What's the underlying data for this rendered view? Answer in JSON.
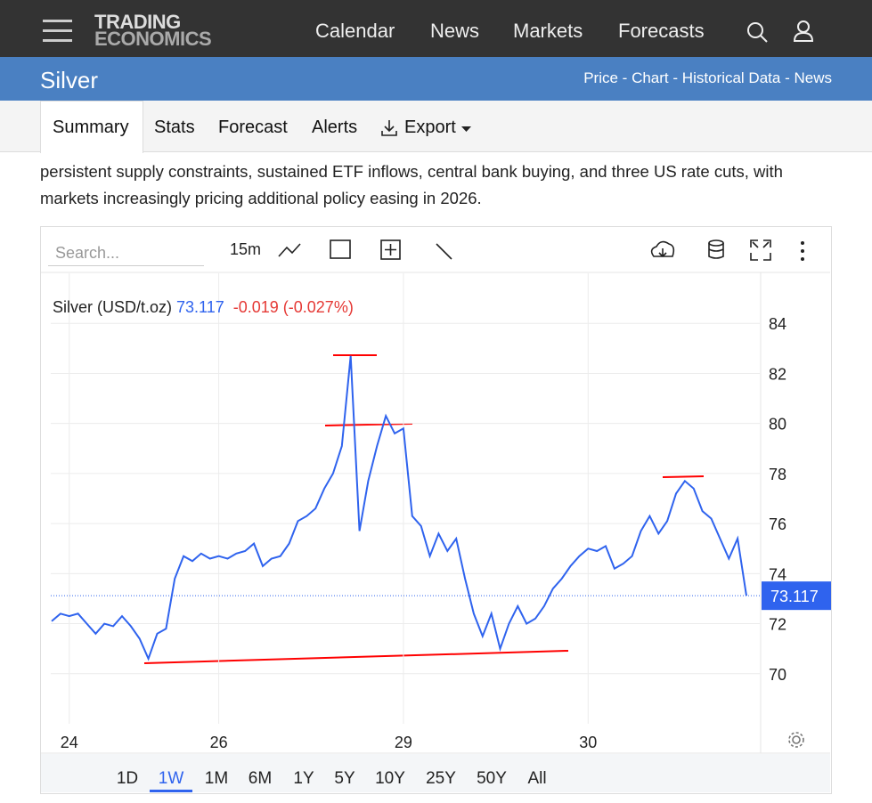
{
  "header": {
    "logo_top": "TRADING",
    "logo_bottom": "ECONOMICS",
    "nav": [
      "Calendar",
      "News",
      "Markets",
      "Forecasts"
    ]
  },
  "page": {
    "title": "Silver",
    "links": [
      "Price",
      "Chart",
      "Historical Data",
      "News"
    ],
    "separator": "-"
  },
  "tabs": [
    "Summary",
    "Stats",
    "Forecast",
    "Alerts",
    "Export"
  ],
  "paragraph": "persistent supply constraints, sustained ETF inflows, central bank buying, and three US rate cuts, with markets increasingly pricing additional policy easing in 2026.",
  "toolbar": {
    "search_placeholder": "Search...",
    "interval": "15m"
  },
  "chart_data": {
    "type": "line",
    "title": "Silver (USD/t.oz)",
    "change": "-0.019",
    "change_pct": "(-0.027%)",
    "categories": [
      null,
      null,
      "24",
      null,
      null,
      null,
      null,
      null,
      null,
      null,
      null,
      null,
      null,
      null,
      null,
      null,
      null,
      null,
      null,
      "26",
      null,
      null,
      null,
      null,
      null,
      null,
      null,
      null,
      null,
      null,
      null,
      null,
      null,
      null,
      null,
      null,
      null,
      null,
      null,
      null,
      "29",
      null,
      null,
      null,
      null,
      null,
      null,
      null,
      null,
      null,
      null,
      null,
      null,
      null,
      null,
      null,
      null,
      null,
      null,
      null,
      null,
      "30",
      null,
      null,
      null,
      null,
      null,
      null,
      null,
      null,
      null,
      null,
      null,
      null,
      null,
      null,
      null,
      null,
      null,
      null
    ],
    "series": [
      {
        "name": "Silver",
        "color": "#2f63ee",
        "values": [
          72.1,
          72.4,
          72.3,
          72.4,
          72.0,
          71.6,
          72.0,
          71.9,
          72.3,
          71.9,
          71.4,
          70.6,
          71.6,
          71.8,
          73.8,
          74.7,
          74.5,
          74.8,
          74.6,
          74.7,
          74.6,
          74.8,
          74.9,
          75.2,
          74.3,
          74.6,
          74.7,
          75.2,
          76.1,
          76.3,
          76.6,
          77.4,
          78.0,
          79.1,
          82.7,
          75.7,
          77.7,
          79.1,
          80.3,
          79.6,
          79.8,
          76.3,
          75.9,
          74.7,
          75.6,
          74.9,
          75.4,
          73.8,
          72.4,
          71.5,
          72.4,
          71.0,
          72.0,
          72.7,
          72.0,
          72.2,
          72.7,
          73.4,
          73.8,
          74.3,
          74.7,
          75.0,
          74.9,
          75.1,
          74.2,
          74.4,
          74.7,
          75.7,
          76.3,
          75.6,
          76.1,
          77.2,
          77.7,
          77.4,
          76.5,
          76.2,
          75.4,
          74.6,
          75.4,
          73.117
        ]
      }
    ],
    "ylim": [
      68,
      86
    ],
    "yticks": [
      70,
      72,
      74,
      76,
      78,
      80,
      82,
      84
    ],
    "grid": true
  },
  "ranges": [
    "1D",
    "1W",
    "1M",
    "6M",
    "1Y",
    "5Y",
    "10Y",
    "25Y",
    "50Y",
    "All"
  ],
  "active_range": 1
}
